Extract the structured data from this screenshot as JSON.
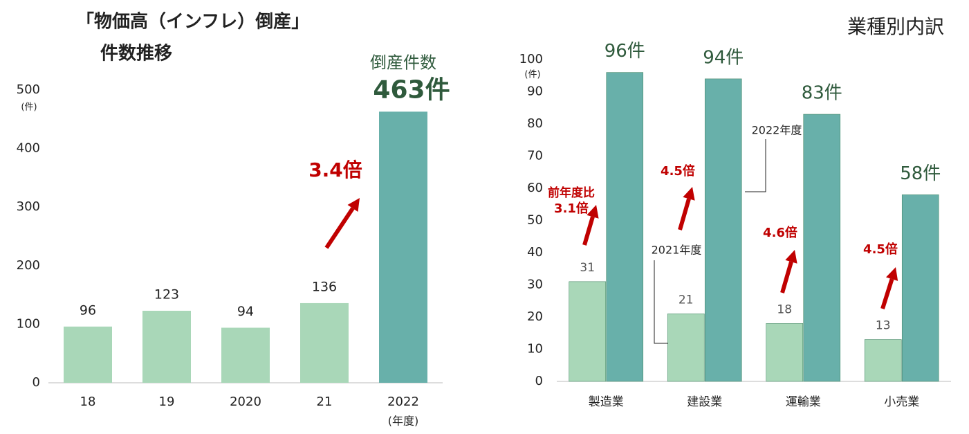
{
  "chart_data": [
    {
      "type": "bar",
      "title": "「物価高（インフレ）倒産」",
      "subtitle": "件数推移",
      "categories": [
        "18",
        "19",
        "2020",
        "21",
        "2022"
      ],
      "values": [
        96,
        123,
        94,
        136,
        463
      ],
      "value_labels": [
        "96",
        "123",
        "94",
        "136",
        "463件"
      ],
      "colors": [
        "#a9d7b8",
        "#a9d7b8",
        "#a9d7b8",
        "#a9d7b8",
        "#68b0aa"
      ],
      "ylim": [
        0,
        500
      ],
      "yticks": [
        0,
        100,
        200,
        300,
        400,
        500
      ],
      "y_unit": "(件)",
      "x_unit": "(年度)",
      "annotations": {
        "label": "倒産件数",
        "ratio": "3.4倍"
      }
    },
    {
      "type": "grouped_bar",
      "title": "業種別内訳",
      "categories": [
        "製造業",
        "建設業",
        "運輸業",
        "小売業"
      ],
      "series": [
        {
          "name": "2021年度",
          "color": "#a9d7b8",
          "values": [
            31,
            21,
            18,
            13
          ]
        },
        {
          "name": "2022年度",
          "color": "#68b0aa",
          "values": [
            96,
            94,
            83,
            58
          ],
          "value_labels": [
            "96件",
            "94件",
            "83件",
            "58件"
          ]
        }
      ],
      "ylim": [
        0,
        100
      ],
      "yticks": [
        0,
        10,
        20,
        30,
        40,
        50,
        60,
        70,
        80,
        90,
        100
      ],
      "y_unit": "(件)",
      "annotations": {
        "ratio_note": "前年度比",
        "ratios": [
          "3.1倍",
          "4.5倍",
          "4.6倍",
          "4.5倍"
        ]
      }
    }
  ]
}
